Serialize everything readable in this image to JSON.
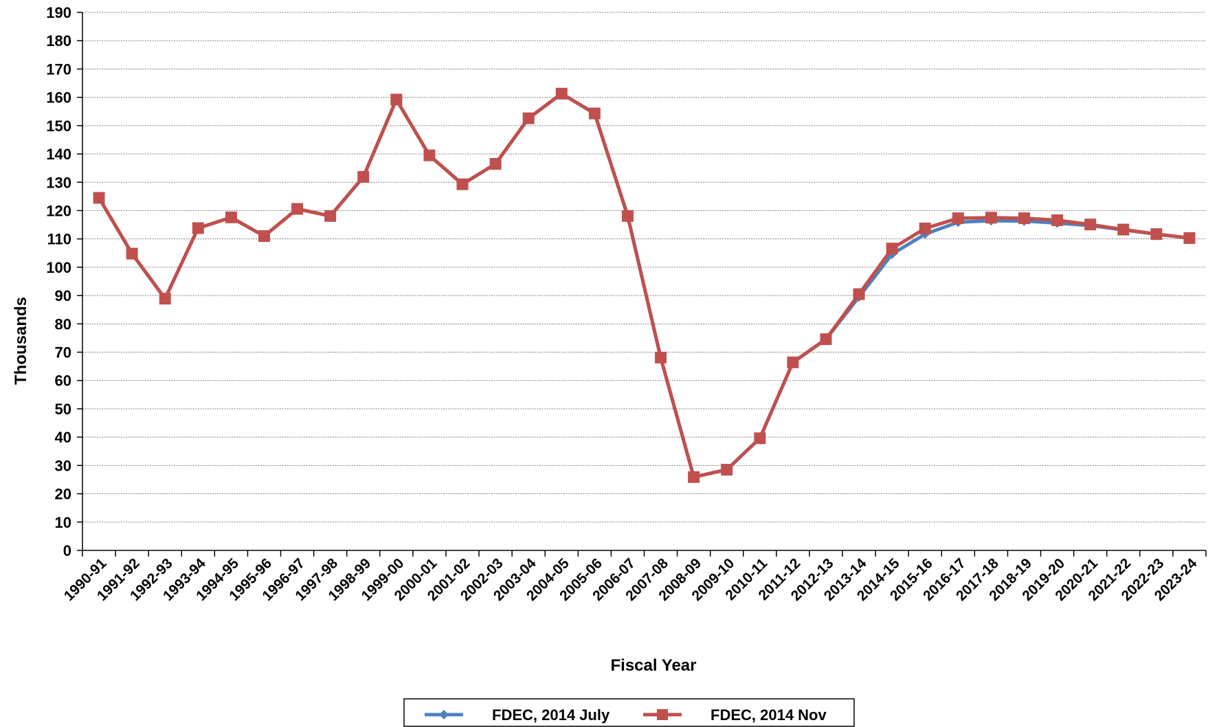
{
  "chart_data": {
    "type": "line",
    "title": "",
    "xlabel": "Fiscal Year",
    "ylabel": "Thousands",
    "ylim": [
      0,
      190
    ],
    "ystep": 10,
    "grid": true,
    "legend_position": "bottom",
    "categories": [
      "1990-91",
      "1991-92",
      "1992-93",
      "1993-94",
      "1994-95",
      "1995-96",
      "1996-97",
      "1997-98",
      "1998-99",
      "1999-00",
      "2000-01",
      "2001-02",
      "2002-03",
      "2003-04",
      "2004-05",
      "2005-06",
      "2006-07",
      "2007-08",
      "2008-09",
      "2009-10",
      "2010-11",
      "2011-12",
      "2012-13",
      "2013-14",
      "2014-15",
      "2015-16",
      "2016-17",
      "2017-18",
      "2018-19",
      "2019-20",
      "2020-21",
      "2021-22",
      "2022-23",
      "2023-24"
    ],
    "series": [
      {
        "name": "FDEC, 2014 July",
        "color": "#4F81BD",
        "marker": "diamond",
        "values": [
          124.5,
          104.8,
          88.9,
          113.8,
          117.6,
          111.0,
          120.6,
          118.1,
          131.9,
          159.2,
          139.5,
          129.3,
          136.5,
          152.6,
          161.3,
          154.3,
          118.1,
          68.1,
          25.9,
          28.5,
          39.6,
          66.4,
          74.6,
          89.5,
          104.6,
          111.7,
          115.9,
          116.4,
          116.3,
          115.6,
          114.7,
          113.2,
          111.7,
          110.3
        ]
      },
      {
        "name": "FDEC, 2014 Nov",
        "color": "#C0504D",
        "marker": "square",
        "values": [
          124.5,
          104.8,
          88.9,
          113.8,
          117.6,
          111.0,
          120.6,
          118.1,
          131.9,
          159.2,
          139.5,
          129.3,
          136.5,
          152.6,
          161.3,
          154.3,
          118.1,
          68.1,
          25.9,
          28.5,
          39.6,
          66.4,
          74.6,
          90.5,
          106.6,
          113.7,
          117.3,
          117.5,
          117.3,
          116.6,
          115.1,
          113.3,
          111.7,
          110.3
        ]
      }
    ]
  }
}
